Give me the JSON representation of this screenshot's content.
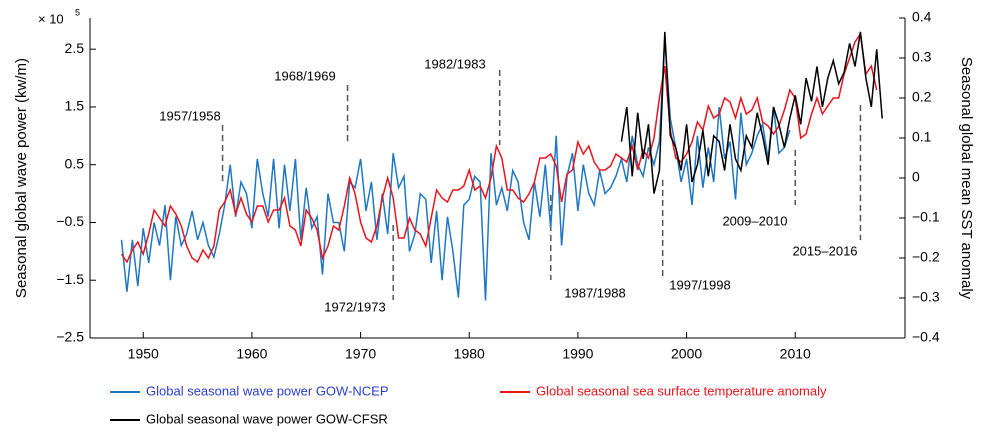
{
  "chart_data": {
    "type": "line",
    "y_label": "Seasonal global wave power (kw/m)",
    "y2_label": "Seasonal global mean SST anomaly",
    "multiplier": "× 10",
    "multiplier_exponent": "5",
    "xlim": [
      1945.1,
      2020.1
    ],
    "xticks": [
      1950,
      1960,
      1970,
      1980,
      1990,
      2000,
      2010
    ],
    "ylim": [
      -2.5,
      3.04
    ],
    "yticks": [
      {
        "value": -2.5,
        "label": "−2.5"
      },
      {
        "value": -1.5,
        "label": "−1.5"
      },
      {
        "value": -0.5,
        "label": "−0.5"
      },
      0.5,
      1.5,
      2.5
    ],
    "y2lim": [
      -0.4,
      0.4
    ],
    "y2ticks": [
      {
        "value": -0.4,
        "label": "−0.4"
      },
      {
        "value": -0.3,
        "label": "−0.3"
      },
      {
        "value": -0.2,
        "label": "−0.2"
      },
      {
        "value": -0.1,
        "label": "−0.1"
      },
      0,
      0.1,
      0.2,
      0.3,
      0.4
    ],
    "series": [
      {
        "name": "Global seasonal wave power GOW-NCEP",
        "color": "#1f77c4",
        "x": [
          1948,
          1948.5,
          1949,
          1949.5,
          1950,
          1950.5,
          1951,
          1951.5,
          1952,
          1952.5,
          1953,
          1953.5,
          1954,
          1954.5,
          1955,
          1955.5,
          1956,
          1956.5,
          1957,
          1957.5,
          1958,
          1958.5,
          1959,
          1959.5,
          1960,
          1960.5,
          1961,
          1961.5,
          1962,
          1962.5,
          1963,
          1963.5,
          1964,
          1964.5,
          1965,
          1965.5,
          1966,
          1966.5,
          1967,
          1967.5,
          1968,
          1968.5,
          1969,
          1969.5,
          1970,
          1970.5,
          1971,
          1971.5,
          1972,
          1972.5,
          1973,
          1973.5,
          1974,
          1974.5,
          1975,
          1975.5,
          1976,
          1976.5,
          1977,
          1977.5,
          1978,
          1978.5,
          1979,
          1979.5,
          1980,
          1980.5,
          1981,
          1981.5,
          1982,
          1982.5,
          1983,
          1983.5,
          1984,
          1984.5,
          1985,
          1985.5,
          1986,
          1986.5,
          1987,
          1987.5,
          1988,
          1988.5,
          1989,
          1989.5,
          1990,
          1990.5,
          1991,
          1991.5,
          1992,
          1992.5,
          1993,
          1993.5,
          1994,
          1994.5,
          1995,
          1995.5,
          1996,
          1996.5,
          1997,
          1997.5,
          1998,
          1998.5,
          1999,
          1999.5,
          2000,
          2000.5,
          2001,
          2001.5,
          2002,
          2002.5,
          2003,
          2003.5,
          2004,
          2004.5,
          2005,
          2005.5,
          2006,
          2006.5,
          2007,
          2007.5,
          2008,
          2008.5,
          2009,
          2009.5
        ],
        "values": [
          -0.8,
          -1.7,
          -0.8,
          -1.6,
          -0.6,
          -1.2,
          -0.5,
          -0.9,
          -0.2,
          -1.5,
          -0.4,
          -0.9,
          -0.7,
          -0.3,
          -0.8,
          -0.5,
          -0.9,
          -1.1,
          -0.7,
          -0.2,
          0.5,
          -0.4,
          0.2,
          0.0,
          -0.6,
          0.6,
          0.0,
          -0.4,
          0.6,
          -0.6,
          0.5,
          -0.3,
          0.6,
          -0.8,
          0.1,
          -0.6,
          -0.4,
          -1.4,
          0.0,
          -0.5,
          -0.5,
          -1.0,
          0.2,
          0.1,
          0.6,
          -0.3,
          0.2,
          -0.8,
          0.0,
          -0.7,
          0.7,
          0.1,
          0.3,
          -1.0,
          -0.7,
          0.0,
          -0.1,
          -1.2,
          -0.3,
          -1.5,
          -0.4,
          -1.0,
          -1.8,
          -0.2,
          -0.1,
          0.3,
          0.2,
          -1.85,
          0.7,
          -0.2,
          0.1,
          -0.3,
          0.4,
          0.2,
          -0.5,
          -0.8,
          0.2,
          -0.4,
          0.5,
          -0.6,
          1.0,
          -0.9,
          0.3,
          0.7,
          -0.3,
          0.5,
          0.0,
          -0.2,
          0.4,
          0.0,
          0.1,
          0.3,
          0.6,
          0.2,
          1.0,
          0.5,
          0.3,
          0.8,
          0.5,
          0.9,
          2.7,
          1.3,
          0.8,
          0.2,
          0.6,
          -0.2,
          1.0,
          0.1,
          0.8,
          0.2,
          1.5,
          0.6,
          0.9,
          -0.1,
          1.4,
          0.5,
          0.7,
          1.0,
          1.2,
          0.6,
          1.5,
          0.7,
          0.8,
          1.1
        ]
      },
      {
        "name": "Global seasonal sea surface temperature anomaly",
        "color": "#e8141c",
        "axis": "y2",
        "x": [
          1948,
          1948.5,
          1949,
          1949.5,
          1950,
          1950.5,
          1951,
          1951.5,
          1952,
          1952.5,
          1953,
          1953.5,
          1954,
          1954.5,
          1955,
          1955.5,
          1956,
          1956.5,
          1957,
          1957.5,
          1958,
          1958.5,
          1959,
          1959.5,
          1960,
          1960.5,
          1961,
          1961.5,
          1962,
          1962.5,
          1963,
          1963.5,
          1964,
          1964.5,
          1965,
          1965.5,
          1966,
          1966.5,
          1967,
          1967.5,
          1968,
          1968.5,
          1969,
          1969.5,
          1970,
          1970.5,
          1971,
          1971.5,
          1972,
          1972.5,
          1973,
          1973.5,
          1974,
          1974.5,
          1975,
          1975.5,
          1976,
          1976.5,
          1977,
          1977.5,
          1978,
          1978.5,
          1979,
          1979.5,
          1980,
          1980.5,
          1981,
          1981.5,
          1982,
          1982.5,
          1983,
          1983.5,
          1984,
          1984.5,
          1985,
          1985.5,
          1986,
          1986.5,
          1987,
          1987.5,
          1988,
          1988.5,
          1989,
          1989.5,
          1990,
          1990.5,
          1991,
          1991.5,
          1992,
          1992.5,
          1993,
          1993.5,
          1994,
          1994.5,
          1995,
          1995.5,
          1996,
          1996.5,
          1997,
          1997.5,
          1998,
          1998.5,
          1999,
          1999.5,
          2000,
          2000.5,
          2001,
          2001.5,
          2002,
          2002.5,
          2003,
          2003.5,
          2004,
          2004.5,
          2005,
          2005.5,
          2006,
          2006.5,
          2007,
          2007.5,
          2008,
          2008.5,
          2009,
          2009.5,
          2010,
          2010.5,
          2011,
          2011.5,
          2012,
          2012.5,
          2013,
          2013.5,
          2014,
          2014.5,
          2015,
          2015.5,
          2016,
          2016.5,
          2017,
          2017.5
        ],
        "values": [
          -0.19,
          -0.21,
          -0.18,
          -0.16,
          -0.19,
          -0.14,
          -0.08,
          -0.1,
          -0.12,
          -0.07,
          -0.09,
          -0.12,
          -0.17,
          -0.2,
          -0.21,
          -0.18,
          -0.2,
          -0.17,
          -0.08,
          -0.06,
          -0.03,
          -0.09,
          -0.05,
          -0.09,
          -0.11,
          -0.07,
          -0.07,
          -0.11,
          -0.08,
          -0.08,
          -0.05,
          -0.12,
          -0.13,
          -0.17,
          -0.08,
          -0.1,
          -0.13,
          -0.2,
          -0.17,
          -0.12,
          -0.13,
          -0.07,
          0.0,
          -0.04,
          -0.11,
          -0.15,
          -0.16,
          -0.12,
          -0.05,
          0.0,
          -0.05,
          -0.15,
          -0.15,
          -0.1,
          -0.13,
          -0.14,
          -0.17,
          -0.1,
          -0.03,
          -0.05,
          -0.06,
          -0.03,
          -0.03,
          -0.02,
          0.02,
          -0.03,
          -0.02,
          -0.05,
          0.0,
          0.08,
          0.05,
          -0.03,
          -0.03,
          -0.05,
          -0.06,
          -0.04,
          -0.01,
          0.05,
          0.05,
          0.06,
          0.03,
          -0.06,
          0.01,
          0.02,
          0.09,
          0.06,
          0.08,
          0.04,
          0.02,
          0.02,
          0.03,
          0.06,
          0.05,
          0.04,
          0.08,
          0.02,
          0.07,
          0.05,
          0.1,
          0.2,
          0.28,
          0.12,
          0.05,
          0.04,
          0.06,
          0.09,
          0.14,
          0.12,
          0.18,
          0.15,
          0.16,
          0.2,
          0.19,
          0.15,
          0.2,
          0.16,
          0.17,
          0.2,
          0.14,
          0.13,
          0.11,
          0.13,
          0.17,
          0.22,
          0.2,
          0.1,
          0.11,
          0.16,
          0.2,
          0.16,
          0.18,
          0.2,
          0.2,
          0.26,
          0.3,
          0.34,
          0.36,
          0.26,
          0.28,
          0.22
        ]
      },
      {
        "name": "Global seasonal wave power GOW-CFSR",
        "color": "#000000",
        "x": [
          1994,
          1994.5,
          1995,
          1995.5,
          1996,
          1996.5,
          1997,
          1997.5,
          1998,
          1998.5,
          1999,
          1999.5,
          2000,
          2000.5,
          2001,
          2001.5,
          2002,
          2002.5,
          2003,
          2003.5,
          2004,
          2004.5,
          2005,
          2005.5,
          2006,
          2006.5,
          2007,
          2007.5,
          2008,
          2008.5,
          2009,
          2009.5,
          2010,
          2010.5,
          2011,
          2011.5,
          2012,
          2012.5,
          2013,
          2013.5,
          2014,
          2014.5,
          2015,
          2015.5,
          2016,
          2016.5,
          2017,
          2017.5,
          2018
        ],
        "values": [
          0.9,
          1.5,
          0.3,
          1.4,
          0.6,
          1.2,
          0.0,
          0.4,
          2.8,
          1.0,
          0.8,
          0.4,
          1.2,
          0.2,
          0.5,
          1.1,
          0.3,
          1.0,
          0.9,
          0.4,
          1.2,
          0.6,
          0.4,
          1.0,
          0.8,
          1.4,
          1.0,
          0.5,
          1.5,
          1.2,
          0.8,
          1.3,
          1.7,
          1.2,
          2.0,
          1.6,
          2.2,
          1.5,
          2.0,
          2.3,
          1.9,
          2.1,
          2.6,
          2.2,
          2.8,
          2.0,
          1.5,
          2.5,
          1.3
        ]
      }
    ],
    "annotations": [
      {
        "text": "1957/1958",
        "x": 1957.3
      },
      {
        "text": "1968/1969",
        "x": 1968.8
      },
      {
        "text": "1972/1973",
        "x": 1973.0
      },
      {
        "text": "1982/1983",
        "x": 1982.8
      },
      {
        "text": "1987/1988",
        "x": 1987.5
      },
      {
        "text": "1997/1998",
        "x": 1997.8
      },
      {
        "text": "2009–2010",
        "x": 2010.0
      },
      {
        "text": "2015–2016",
        "x": 2016.0
      }
    ]
  }
}
